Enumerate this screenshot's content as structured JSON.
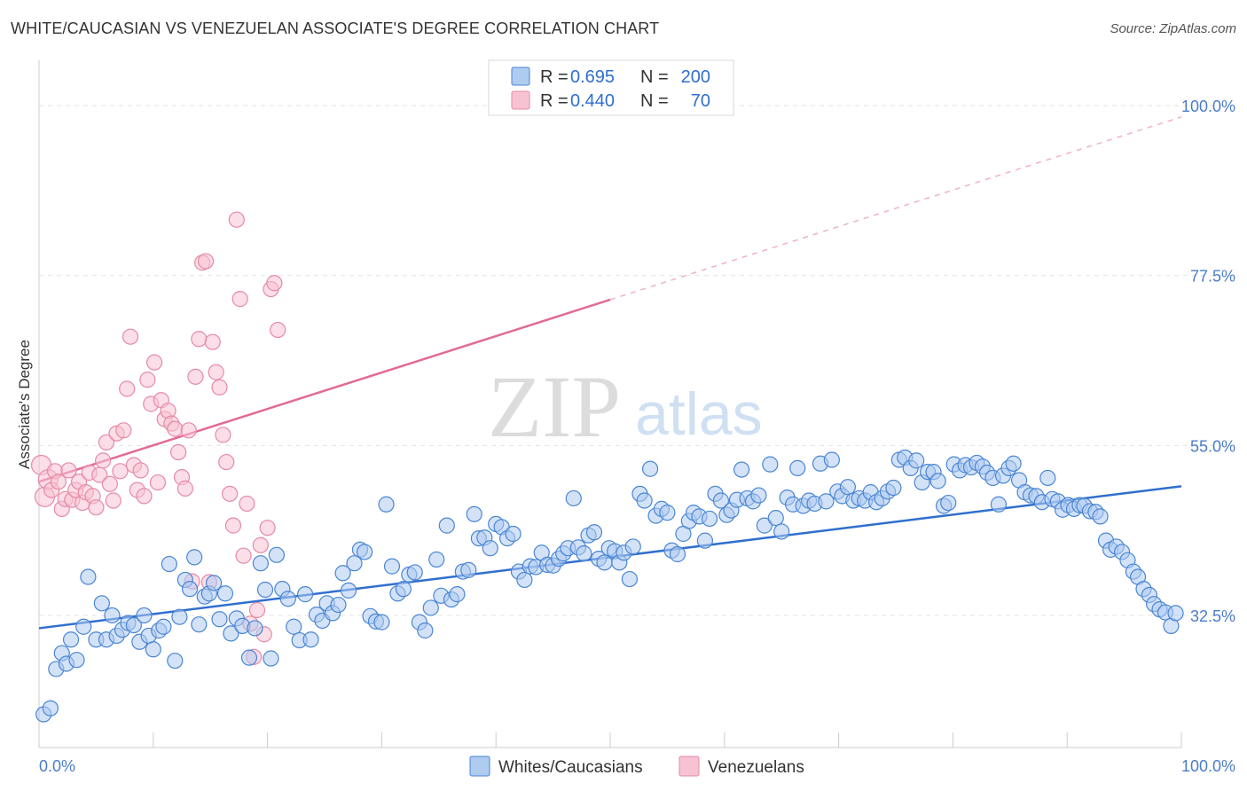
{
  "title": "WHITE/CAUCASIAN VS VENEZUELAN ASSOCIATE'S DEGREE CORRELATION CHART",
  "source": "Source: ZipAtlas.com",
  "watermark": {
    "zip": "ZIP",
    "atlas": "atlas"
  },
  "colors": {
    "blue_fill": "#aecbf0",
    "blue_stroke": "#4a86d4",
    "blue_line": "#2f6fce",
    "pink_fill": "#f7c3d3",
    "pink_stroke": "#e58aa6",
    "pink_line": "#e26b93",
    "tick_text": "#4a7cc9"
  },
  "legend": {
    "rows": [
      {
        "r_label": "R =",
        "r_value": "0.695",
        "n_label": "N =",
        "n_value": "200"
      },
      {
        "r_label": "R =",
        "r_value": "0.440",
        "n_label": "N =",
        "n_value": "70"
      }
    ]
  },
  "chart_data": {
    "type": "scatter",
    "title": "WHITE/CAUCASIAN VS VENEZUELAN ASSOCIATE'S DEGREE CORRELATION CHART",
    "xlabel": "",
    "ylabel": "Associate's Degree",
    "xlim": [
      0,
      100
    ],
    "ylim": [
      15,
      106
    ],
    "x_tick_labels": [
      "0.0%",
      "100.0%"
    ],
    "y_ticks": [
      {
        "value": 32.5,
        "label": "32.5%"
      },
      {
        "value": 55.0,
        "label": "55.0%"
      },
      {
        "value": 77.5,
        "label": "77.5%"
      },
      {
        "value": 100.0,
        "label": "100.0%"
      }
    ],
    "grid": true,
    "legend_position": "top-center",
    "series": [
      {
        "name": "Whites/Caucasians",
        "color": "blue",
        "R": 0.695,
        "N": 200,
        "trend": {
          "x": [
            0,
            100
          ],
          "y": [
            30.8,
            49.6
          ]
        },
        "points": [
          [
            0.4,
            19.4
          ],
          [
            1,
            20.2
          ],
          [
            1.5,
            25.4
          ],
          [
            2,
            27.5
          ],
          [
            2.4,
            26.1
          ],
          [
            2.8,
            29.3
          ],
          [
            3.3,
            26.6
          ],
          [
            3.9,
            31
          ],
          [
            4.3,
            37.6
          ],
          [
            5,
            29.3
          ],
          [
            5.5,
            34.1
          ],
          [
            5.9,
            29.3
          ],
          [
            6.4,
            32.5
          ],
          [
            6.8,
            29.8
          ],
          [
            7.3,
            30.6
          ],
          [
            7.8,
            31.5
          ],
          [
            8.3,
            31.2
          ],
          [
            8.8,
            29
          ],
          [
            9.2,
            32.5
          ],
          [
            9.6,
            29.8
          ],
          [
            10,
            28
          ],
          [
            10.5,
            30.5
          ],
          [
            10.9,
            31
          ],
          [
            11.4,
            39.3
          ],
          [
            11.9,
            26.5
          ],
          [
            12.3,
            32.3
          ],
          [
            12.8,
            37.2
          ],
          [
            13.2,
            36
          ],
          [
            13.6,
            40.2
          ],
          [
            14,
            31.3
          ],
          [
            14.5,
            35
          ],
          [
            14.9,
            35.4
          ],
          [
            15.3,
            36.8
          ],
          [
            15.8,
            32
          ],
          [
            16.3,
            35.4
          ],
          [
            16.8,
            30.1
          ],
          [
            17.3,
            32.1
          ],
          [
            17.8,
            31.1
          ],
          [
            18.4,
            26.9
          ],
          [
            18.9,
            30.8
          ],
          [
            19.4,
            39.4
          ],
          [
            19.8,
            35.9
          ],
          [
            20.3,
            26.8
          ],
          [
            20.8,
            40.5
          ],
          [
            21.3,
            36
          ],
          [
            21.8,
            34.7
          ],
          [
            22.3,
            31
          ],
          [
            22.8,
            29.2
          ],
          [
            23.3,
            35.3
          ],
          [
            23.8,
            29.3
          ],
          [
            24.3,
            32.6
          ],
          [
            24.8,
            31.8
          ],
          [
            25.2,
            34.1
          ],
          [
            25.7,
            32.8
          ],
          [
            26.2,
            33.9
          ],
          [
            26.6,
            38.1
          ],
          [
            27.1,
            35.8
          ],
          [
            27.6,
            39.4
          ],
          [
            28.1,
            41.2
          ],
          [
            28.5,
            40.9
          ],
          [
            29,
            32.4
          ],
          [
            29.5,
            31.7
          ],
          [
            30,
            31.6
          ],
          [
            30.4,
            47.2
          ],
          [
            30.9,
            39
          ],
          [
            31.4,
            35.4
          ],
          [
            31.9,
            36
          ],
          [
            32.4,
            37.9
          ],
          [
            32.9,
            38.2
          ],
          [
            33.3,
            31.6
          ],
          [
            33.8,
            30.5
          ],
          [
            34.3,
            33.5
          ],
          [
            34.8,
            39.9
          ],
          [
            35.2,
            35.1
          ],
          [
            35.7,
            44.4
          ],
          [
            36.1,
            34.6
          ],
          [
            36.6,
            35.3
          ],
          [
            37.1,
            38.3
          ],
          [
            37.6,
            38.5
          ],
          [
            38.1,
            45.9
          ],
          [
            38.5,
            42.7
          ],
          [
            39,
            42.8
          ],
          [
            39.5,
            41.4
          ],
          [
            40,
            44.6
          ],
          [
            40.5,
            44.2
          ],
          [
            41,
            42.7
          ],
          [
            41.5,
            43.3
          ],
          [
            42,
            38.3
          ],
          [
            42.5,
            37.2
          ],
          [
            43,
            39
          ],
          [
            43.5,
            38.9
          ],
          [
            44,
            40.8
          ],
          [
            44.5,
            39.2
          ],
          [
            45,
            39.1
          ],
          [
            45.5,
            40
          ],
          [
            45.9,
            40.7
          ],
          [
            46.3,
            41.4
          ],
          [
            46.8,
            48
          ],
          [
            47.2,
            41.5
          ],
          [
            47.7,
            40.7
          ],
          [
            48.1,
            43.1
          ],
          [
            48.6,
            43.5
          ],
          [
            49,
            40
          ],
          [
            49.5,
            39.5
          ],
          [
            49.9,
            41.4
          ],
          [
            50.4,
            41
          ],
          [
            50.8,
            39.5
          ],
          [
            51.2,
            40.8
          ],
          [
            51.7,
            37.3
          ],
          [
            52,
            41.6
          ],
          [
            52.6,
            48.6
          ],
          [
            53,
            47.7
          ],
          [
            53.5,
            51.9
          ],
          [
            54,
            45.7
          ],
          [
            54.5,
            46.6
          ],
          [
            55,
            46.1
          ],
          [
            55.4,
            41.1
          ],
          [
            55.9,
            40.6
          ],
          [
            56.4,
            43.3
          ],
          [
            56.9,
            45
          ],
          [
            57.3,
            46.1
          ],
          [
            57.8,
            45.6
          ],
          [
            58.3,
            42.4
          ],
          [
            58.7,
            45.3
          ],
          [
            59.2,
            48.6
          ],
          [
            59.7,
            47.7
          ],
          [
            60.2,
            45.8
          ],
          [
            60.6,
            46.4
          ],
          [
            61.1,
            47.8
          ],
          [
            61.5,
            51.8
          ],
          [
            62,
            48
          ],
          [
            62.5,
            47.6
          ],
          [
            63,
            48.4
          ],
          [
            63.5,
            44.4
          ],
          [
            64,
            52.5
          ],
          [
            64.5,
            45.4
          ],
          [
            65,
            43.6
          ],
          [
            65.5,
            48.1
          ],
          [
            66,
            47.2
          ],
          [
            66.4,
            52
          ],
          [
            66.9,
            47
          ],
          [
            67.4,
            47.7
          ],
          [
            67.9,
            47.3
          ],
          [
            68.4,
            52.6
          ],
          [
            68.9,
            47.6
          ],
          [
            69.4,
            53.1
          ],
          [
            69.9,
            48.9
          ],
          [
            70.3,
            48.3
          ],
          [
            70.8,
            49.5
          ],
          [
            71.3,
            47.7
          ],
          [
            71.8,
            48
          ],
          [
            72.3,
            47.7
          ],
          [
            72.8,
            48.8
          ],
          [
            73.3,
            47.5
          ],
          [
            73.8,
            48
          ],
          [
            74.3,
            48.9
          ],
          [
            74.8,
            49.4
          ],
          [
            75.3,
            53.1
          ],
          [
            75.8,
            53.4
          ],
          [
            76.3,
            52
          ],
          [
            76.8,
            53
          ],
          [
            77.3,
            50.1
          ],
          [
            77.8,
            51.5
          ],
          [
            78.3,
            51.5
          ],
          [
            78.7,
            50.3
          ],
          [
            79.2,
            47
          ],
          [
            79.6,
            47.4
          ],
          [
            80.1,
            52.5
          ],
          [
            80.6,
            51.7
          ],
          [
            81.1,
            52.4
          ],
          [
            81.6,
            52.1
          ],
          [
            82.1,
            52.7
          ],
          [
            82.6,
            52.2
          ],
          [
            83,
            51.4
          ],
          [
            83.5,
            50.7
          ],
          [
            84,
            47.2
          ],
          [
            84.4,
            51
          ],
          [
            84.9,
            52
          ],
          [
            85.3,
            52.6
          ],
          [
            85.8,
            50.4
          ],
          [
            86.3,
            48.8
          ],
          [
            86.8,
            48.4
          ],
          [
            87.3,
            48.3
          ],
          [
            87.8,
            47.5
          ],
          [
            88.3,
            50.7
          ],
          [
            88.7,
            47.9
          ],
          [
            89.2,
            47.6
          ],
          [
            89.6,
            46.5
          ],
          [
            90.1,
            47.1
          ],
          [
            90.6,
            46.6
          ],
          [
            91.1,
            47.1
          ],
          [
            91.5,
            47
          ],
          [
            92,
            46.3
          ],
          [
            92.5,
            46.2
          ],
          [
            92.9,
            45.6
          ],
          [
            93.4,
            42.4
          ],
          [
            93.8,
            41.2
          ],
          [
            94.3,
            41.6
          ],
          [
            94.8,
            40.9
          ],
          [
            95.3,
            39.8
          ],
          [
            95.8,
            38.3
          ],
          [
            96.2,
            37.6
          ],
          [
            96.7,
            36
          ],
          [
            97.2,
            35.2
          ],
          [
            97.6,
            34
          ],
          [
            98.1,
            33.3
          ],
          [
            98.6,
            32.9
          ],
          [
            99.1,
            31.1
          ],
          [
            99.5,
            32.8
          ]
        ]
      },
      {
        "name": "Venezuelans",
        "color": "pink",
        "R": 0.44,
        "N": 70,
        "trend": {
          "x": [
            0,
            50
          ],
          "y": [
            50.2,
            74.3
          ],
          "dashed_to": {
            "x": 100,
            "y": 98.5
          }
        },
        "points": [
          [
            0.2,
            52.4
          ],
          [
            0.5,
            48.2
          ],
          [
            0.8,
            50.5
          ],
          [
            1.1,
            49.1
          ],
          [
            1.4,
            51.6
          ],
          [
            1.7,
            50.2
          ],
          [
            2,
            46.6
          ],
          [
            2.3,
            47.9
          ],
          [
            2.6,
            51.7
          ],
          [
            2.9,
            47.8
          ],
          [
            3.2,
            49.1
          ],
          [
            3.5,
            50.2
          ],
          [
            3.8,
            47.4
          ],
          [
            4.1,
            48.8
          ],
          [
            4.4,
            51.4
          ],
          [
            4.7,
            48.3
          ],
          [
            5,
            46.8
          ],
          [
            5.3,
            51.1
          ],
          [
            5.6,
            53
          ],
          [
            5.9,
            55.4
          ],
          [
            6.2,
            49.9
          ],
          [
            6.5,
            47.7
          ],
          [
            6.8,
            56.6
          ],
          [
            7.1,
            51.6
          ],
          [
            7.4,
            57
          ],
          [
            7.7,
            62.5
          ],
          [
            8,
            69.4
          ],
          [
            8.3,
            52.4
          ],
          [
            8.6,
            49.1
          ],
          [
            8.9,
            51.7
          ],
          [
            9.2,
            48.3
          ],
          [
            9.5,
            63.7
          ],
          [
            9.8,
            60.5
          ],
          [
            10.1,
            66
          ],
          [
            10.4,
            50.1
          ],
          [
            10.7,
            61
          ],
          [
            11,
            58.5
          ],
          [
            11.3,
            59.6
          ],
          [
            11.6,
            57.9
          ],
          [
            11.9,
            57.2
          ],
          [
            12.2,
            54.1
          ],
          [
            12.5,
            50.8
          ],
          [
            12.8,
            49.3
          ],
          [
            13.1,
            57
          ],
          [
            13.4,
            37
          ],
          [
            13.7,
            64.1
          ],
          [
            14,
            69.1
          ],
          [
            14.3,
            79.2
          ],
          [
            14.6,
            79.4
          ],
          [
            14.9,
            36.9
          ],
          [
            15.2,
            68.7
          ],
          [
            15.5,
            64.7
          ],
          [
            15.8,
            62.7
          ],
          [
            16.1,
            56.4
          ],
          [
            16.4,
            52.8
          ],
          [
            16.7,
            48.6
          ],
          [
            17,
            44.4
          ],
          [
            17.3,
            84.9
          ],
          [
            17.6,
            74.4
          ],
          [
            17.9,
            40.4
          ],
          [
            18.2,
            47.3
          ],
          [
            18.5,
            31.4
          ],
          [
            18.8,
            27
          ],
          [
            19.1,
            33.2
          ],
          [
            19.4,
            41.8
          ],
          [
            19.7,
            30
          ],
          [
            20,
            44.1
          ],
          [
            20.3,
            75.7
          ],
          [
            20.6,
            76.5
          ],
          [
            20.9,
            70.3
          ]
        ]
      }
    ]
  },
  "bottom_legend": [
    {
      "label": "Whites/Caucasians",
      "color": "blue"
    },
    {
      "label": "Venezuelans",
      "color": "pink"
    }
  ]
}
